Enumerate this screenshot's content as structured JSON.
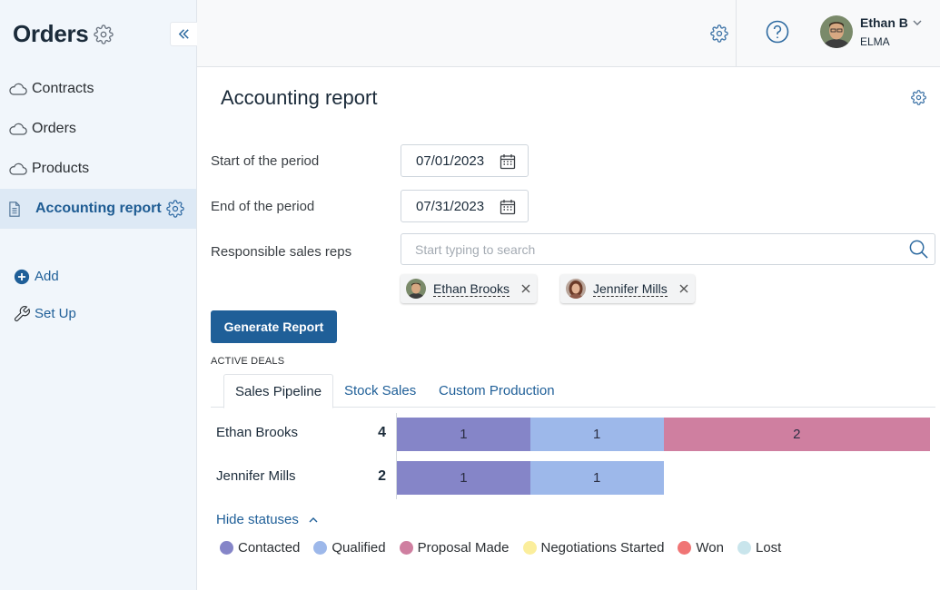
{
  "sidebar": {
    "title": "Orders",
    "items": [
      {
        "label": "Contracts",
        "icon": "cloud-icon"
      },
      {
        "label": "Orders",
        "icon": "cloud-icon"
      },
      {
        "label": "Products",
        "icon": "cloud-icon"
      },
      {
        "label": "Accounting report",
        "icon": "document-icon",
        "active": true
      }
    ],
    "add_label": "Add",
    "setup_label": "Set Up"
  },
  "topbar": {
    "user_name": "Ethan B",
    "user_org": "ELMA"
  },
  "page": {
    "title": "Accounting report"
  },
  "form": {
    "start_label": "Start of the period",
    "start_value": "07/01/2023",
    "end_label": "End of the period",
    "end_value": "07/31/2023",
    "reps_label": "Responsible sales reps",
    "reps_placeholder": "Start typing to search",
    "chips": [
      {
        "name": "Ethan Brooks"
      },
      {
        "name": "Jennifer Mills"
      }
    ],
    "generate_label": "Generate Report"
  },
  "report": {
    "section_label": "ACTIVE DEALS",
    "tabs": [
      {
        "label": "Sales Pipeline",
        "active": true
      },
      {
        "label": "Stock Sales"
      },
      {
        "label": "Custom Production"
      }
    ],
    "hide_statuses_label": "Hide statuses"
  },
  "chart_data": {
    "type": "bar",
    "orientation": "horizontal",
    "stacked": true,
    "categories": [
      "Ethan Brooks",
      "Jennifer Mills"
    ],
    "totals": [
      4,
      2
    ],
    "series": [
      {
        "name": "Contacted",
        "color": "#8585c8",
        "values": [
          1,
          1
        ]
      },
      {
        "name": "Qualified",
        "color": "#9db8ea",
        "values": [
          1,
          1
        ]
      },
      {
        "name": "Proposal Made",
        "color": "#cf7fa0",
        "values": [
          2,
          0
        ]
      },
      {
        "name": "Negotiations Started",
        "color": "#fbee9c",
        "values": [
          0,
          0
        ]
      },
      {
        "name": "Won",
        "color": "#f07575",
        "values": [
          0,
          0
        ]
      },
      {
        "name": "Lost",
        "color": "#c9e5ec",
        "values": [
          0,
          0
        ]
      }
    ],
    "legend_position": "bottom"
  }
}
